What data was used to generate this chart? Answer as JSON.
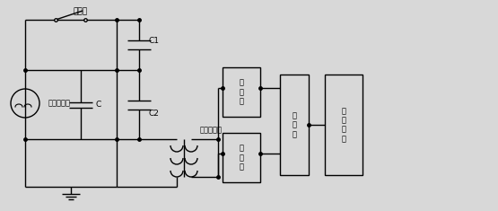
{
  "bg_color": "#d8d8d8",
  "line_color": "#000000",
  "line_width": 1.0,
  "dot_color": "#000000",
  "labels": {
    "breaker": "断路器",
    "transformer": "试验变压器",
    "C": "C",
    "C1": "C1",
    "C2": "C2",
    "voltage_converter": "电压转换器",
    "collector1": "采\n集\n器",
    "collector2": "采\n集\n器",
    "merger": "合\n并\n器",
    "recorder": "故\n障\n录\n波"
  },
  "font_size": 6.5
}
